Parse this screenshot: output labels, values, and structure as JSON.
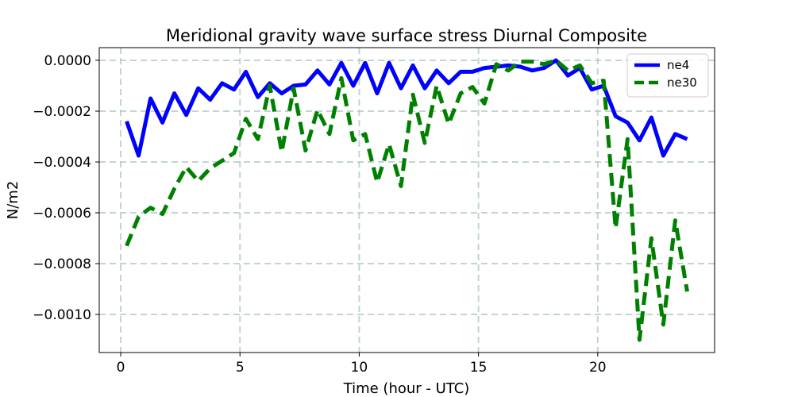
{
  "chart_data": {
    "type": "line",
    "title": "Meridional gravity wave surface stress Diurnal Composite",
    "xlabel": "Time (hour - UTC)",
    "ylabel": "N/m2",
    "xlim": [
      -0.9,
      24.9
    ],
    "ylim": [
      -0.00115,
      5e-05
    ],
    "xticks": [
      0,
      5,
      10,
      15,
      20
    ],
    "xtick_labels": [
      "0",
      "5",
      "10",
      "15",
      "20"
    ],
    "yticks": [
      0.0,
      -0.0002,
      -0.0004,
      -0.0006,
      -0.0008,
      -0.001
    ],
    "ytick_labels": [
      "0.0000",
      "−0.0002",
      "−0.0004",
      "−0.0006",
      "−0.0008",
      "−0.0010"
    ],
    "grid": true,
    "legend_position": "top-right",
    "x": [
      0.25,
      0.75,
      1.25,
      1.75,
      2.25,
      2.75,
      3.25,
      3.75,
      4.25,
      4.75,
      5.25,
      5.75,
      6.25,
      6.75,
      7.25,
      7.75,
      8.25,
      8.75,
      9.25,
      9.75,
      10.25,
      10.75,
      11.25,
      11.75,
      12.25,
      12.75,
      13.25,
      13.75,
      14.25,
      14.75,
      15.25,
      15.75,
      16.25,
      16.75,
      17.25,
      17.75,
      18.25,
      18.75,
      19.25,
      19.75,
      20.25,
      20.75,
      21.25,
      21.75,
      22.25,
      22.75,
      23.25,
      23.75
    ],
    "series": [
      {
        "name": "ne4",
        "color": "#0000ff",
        "style": "solid",
        "values": [
          -0.00024,
          -0.000375,
          -0.00015,
          -0.000245,
          -0.00013,
          -0.000215,
          -0.00011,
          -0.000155,
          -9e-05,
          -0.000115,
          -4.5e-05,
          -0.000145,
          -9e-05,
          -0.00013,
          -0.0001,
          -9.5e-05,
          -4e-05,
          -9.5e-05,
          -1e-05,
          -0.0001,
          -1e-05,
          -0.00013,
          -1e-05,
          -0.00011,
          -2e-05,
          -0.00011,
          -4e-05,
          -9e-05,
          -4.5e-05,
          -4.5e-05,
          -3e-05,
          -2.5e-05,
          -2e-05,
          -2.5e-05,
          -4e-05,
          -3e-05,
          0.0,
          -6e-05,
          -3e-05,
          -0.000115,
          -0.0001,
          -0.00022,
          -0.000245,
          -0.000315,
          -0.000225,
          -0.000375,
          -0.00029,
          -0.00031
        ]
      },
      {
        "name": "ne30",
        "color": "#008000",
        "style": "dashed",
        "values": [
          -0.00073,
          -0.000615,
          -0.00058,
          -0.000605,
          -0.000505,
          -0.00042,
          -0.000475,
          -0.000425,
          -0.000395,
          -0.000365,
          -0.00023,
          -0.00031,
          -0.0001,
          -0.00036,
          -0.00011,
          -0.000355,
          -0.000195,
          -0.00029,
          -7e-05,
          -0.000315,
          -0.00029,
          -0.00048,
          -0.00033,
          -0.000495,
          -0.000135,
          -0.000325,
          -0.0001,
          -0.00025,
          -0.00013,
          -0.000105,
          -0.00017,
          -1.5e-05,
          -4e-05,
          -5e-06,
          -5e-06,
          -1.5e-05,
          0.0,
          -4e-05,
          -2e-05,
          -9e-05,
          -8e-05,
          -0.00066,
          -0.00031,
          -0.0011,
          -0.0007,
          -0.00104,
          -0.00063,
          -0.00091
        ]
      }
    ]
  }
}
